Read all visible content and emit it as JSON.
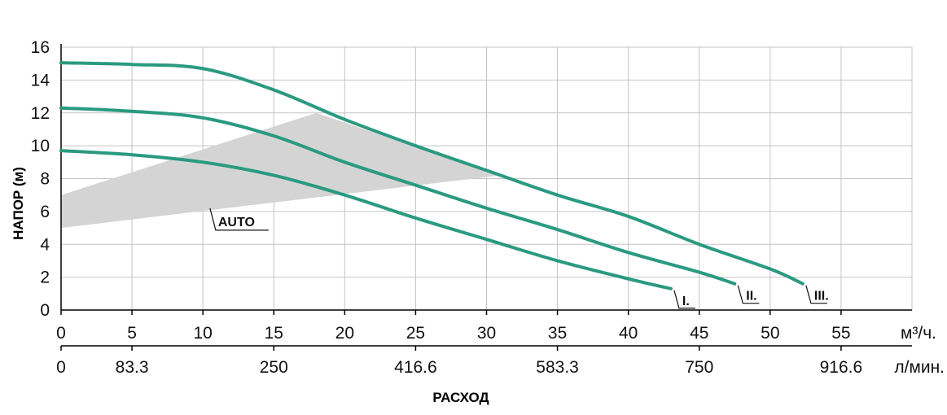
{
  "chart_data": {
    "type": "line",
    "title": "",
    "ylabel": "НАПОР (м)",
    "xlabel": "РАСХОД",
    "ylim": [
      0,
      16
    ],
    "xlim": [
      0,
      60
    ],
    "yticks": [
      0,
      2,
      4,
      6,
      8,
      10,
      12,
      14,
      16
    ],
    "xticks": [
      0,
      5,
      10,
      15,
      20,
      25,
      30,
      35,
      40,
      45,
      50,
      55
    ],
    "x_unit": "м³/ч.",
    "secondary_x": {
      "unit": "л/мин.",
      "ticks": [
        {
          "at": 0,
          "label": "0"
        },
        {
          "at": 5,
          "label": "83.3"
        },
        {
          "at": 15,
          "label": "250"
        },
        {
          "at": 25,
          "label": "416.6"
        },
        {
          "at": 35,
          "label": "583.3"
        },
        {
          "at": 45,
          "label": "750"
        },
        {
          "at": 55,
          "label": "916.6"
        }
      ]
    },
    "grid": true,
    "series": [
      {
        "name": "I.",
        "color": "#2a9a80",
        "x": [
          0,
          5,
          10,
          15,
          20,
          25,
          30,
          35,
          40,
          43
        ],
        "y": [
          9.7,
          9.45,
          9.0,
          8.2,
          7.0,
          5.6,
          4.3,
          3.0,
          1.9,
          1.3
        ]
      },
      {
        "name": "II.",
        "color": "#2a9a80",
        "x": [
          0,
          5,
          10,
          15,
          20,
          25,
          30,
          35,
          40,
          45,
          47.5
        ],
        "y": [
          12.3,
          12.1,
          11.7,
          10.6,
          9.0,
          7.6,
          6.2,
          4.9,
          3.5,
          2.3,
          1.6
        ]
      },
      {
        "name": "III.",
        "color": "#2a9a80",
        "x": [
          0,
          5,
          10,
          15,
          20,
          25,
          30,
          35,
          40,
          45,
          50,
          52.3
        ],
        "y": [
          15.05,
          14.95,
          14.7,
          13.4,
          11.6,
          10.0,
          8.5,
          7.0,
          5.7,
          4.0,
          2.5,
          1.6
        ]
      }
    ],
    "band": {
      "name": "AUTO",
      "color": "#d4d4d4",
      "polygon": [
        [
          0,
          5.0
        ],
        [
          0,
          7.0
        ],
        [
          18,
          12.0
        ],
        [
          31,
          8.2
        ]
      ]
    }
  }
}
